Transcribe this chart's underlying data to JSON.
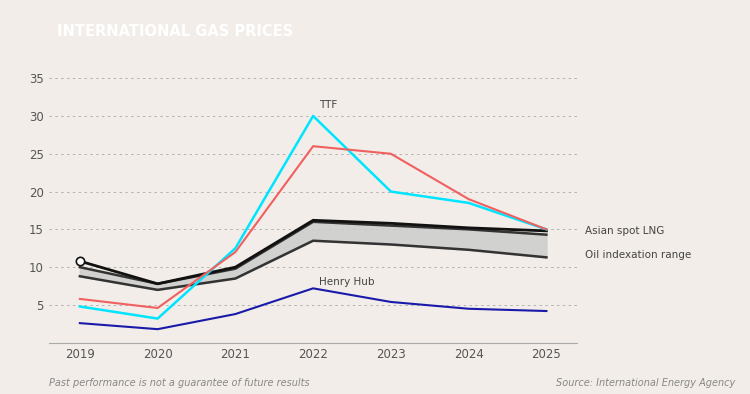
{
  "title": "INTERNATIONAL GAS PRICES",
  "title_bg_color": "#A07855",
  "title_text_color": "#FFFFFF",
  "background_color": "#F2EDE8",
  "plot_bg_color": "#F2EDE8",
  "years": [
    2019,
    2020,
    2021,
    2022,
    2023,
    2024,
    2025
  ],
  "ttf_line": [
    4.8,
    3.2,
    12.5,
    30.0,
    20.0,
    18.5,
    15.0
  ],
  "salmon_line": [
    5.8,
    4.6,
    12.0,
    26.0,
    25.0,
    19.0,
    15.0
  ],
  "henry_hub": [
    2.6,
    1.8,
    3.8,
    7.2,
    5.4,
    4.5,
    4.2
  ],
  "asian_spot_lng": [
    10.8,
    7.8,
    10.0,
    16.2,
    15.8,
    15.2,
    14.8
  ],
  "oil_index_upper": [
    10.0,
    7.8,
    9.8,
    16.0,
    15.5,
    15.0,
    14.3
  ],
  "oil_index_lower": [
    8.8,
    7.0,
    8.5,
    13.5,
    13.0,
    12.3,
    11.3
  ],
  "ylim": [
    0,
    37
  ],
  "yticks": [
    0,
    5,
    10,
    15,
    20,
    25,
    30,
    35
  ],
  "footnote_left": "Past performance is not a guarantee of future results",
  "footnote_right": "Source: International Energy Agency",
  "footnote_color": "#888888",
  "grid_color": "#AAAAAA",
  "line_color_ttf": "#00E5FF",
  "line_color_salmon": "#F06060",
  "line_color_henry": "#1a1aaa",
  "line_color_asian": "#111111",
  "band_fill_color": "#CCCCCC",
  "band_edge_color": "#333333",
  "annotation_color": "#444444",
  "dot_color": "#111111"
}
